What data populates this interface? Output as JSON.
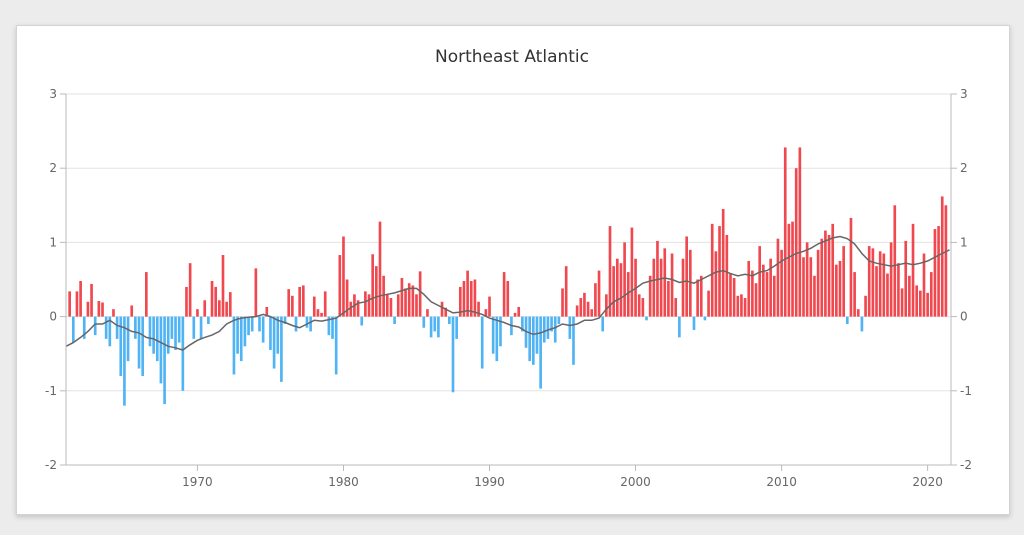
{
  "chart_data": {
    "type": "bar",
    "title": "Northeast Atlantic",
    "xlabel": "",
    "ylabel": "",
    "x_range": [
      1961.0,
      2021.6
    ],
    "ylim": [
      -2,
      3
    ],
    "yticks": [
      3,
      2,
      1,
      0,
      -1,
      -2
    ],
    "xticks": [
      1970,
      1980,
      1990,
      2000,
      2010,
      2020
    ],
    "grid": "horizontal",
    "colors": {
      "positive": "#f0484f",
      "negative": "#4fb3f4",
      "line": "#666666",
      "axis": "#bbbbbb",
      "grid": "#e3e3e3"
    },
    "bar_width_years": 0.25,
    "anomalies": [
      [
        1961.25,
        0.34
      ],
      [
        1961.5,
        -0.35
      ],
      [
        1961.75,
        0.34
      ],
      [
        1962.0,
        0.48
      ],
      [
        1962.25,
        -0.3
      ],
      [
        1962.5,
        0.2
      ],
      [
        1962.75,
        0.44
      ],
      [
        1963.0,
        -0.25
      ],
      [
        1963.25,
        0.21
      ],
      [
        1963.5,
        0.19
      ],
      [
        1963.75,
        -0.3
      ],
      [
        1964.0,
        -0.4
      ],
      [
        1964.25,
        0.1
      ],
      [
        1964.5,
        -0.3
      ],
      [
        1964.75,
        -0.8
      ],
      [
        1965.0,
        -1.2
      ],
      [
        1965.25,
        -0.6
      ],
      [
        1965.5,
        0.15
      ],
      [
        1965.75,
        -0.3
      ],
      [
        1966.0,
        -0.7
      ],
      [
        1966.25,
        -0.8
      ],
      [
        1966.5,
        0.6
      ],
      [
        1966.75,
        -0.4
      ],
      [
        1967.0,
        -0.5
      ],
      [
        1967.25,
        -0.6
      ],
      [
        1967.5,
        -0.9
      ],
      [
        1967.75,
        -1.18
      ],
      [
        1968.0,
        -0.5
      ],
      [
        1968.25,
        -0.3
      ],
      [
        1968.5,
        -0.45
      ],
      [
        1968.75,
        -0.35
      ],
      [
        1969.0,
        -1.0
      ],
      [
        1969.25,
        0.4
      ],
      [
        1969.5,
        0.72
      ],
      [
        1969.75,
        -0.3
      ],
      [
        1970.0,
        0.1
      ],
      [
        1970.25,
        -0.3
      ],
      [
        1970.5,
        0.22
      ],
      [
        1970.75,
        -0.1
      ],
      [
        1971.0,
        0.48
      ],
      [
        1971.25,
        0.4
      ],
      [
        1971.5,
        0.22
      ],
      [
        1971.75,
        0.83
      ],
      [
        1972.0,
        0.2
      ],
      [
        1972.25,
        0.33
      ],
      [
        1972.5,
        -0.78
      ],
      [
        1972.75,
        -0.5
      ],
      [
        1973.0,
        -0.6
      ],
      [
        1973.25,
        -0.4
      ],
      [
        1973.5,
        -0.25
      ],
      [
        1973.75,
        -0.2
      ],
      [
        1974.0,
        0.65
      ],
      [
        1974.25,
        -0.2
      ],
      [
        1974.5,
        -0.35
      ],
      [
        1974.75,
        0.13
      ],
      [
        1975.0,
        -0.45
      ],
      [
        1975.25,
        -0.7
      ],
      [
        1975.5,
        -0.5
      ],
      [
        1975.75,
        -0.88
      ],
      [
        1976.0,
        -0.1
      ],
      [
        1976.25,
        0.37
      ],
      [
        1976.5,
        0.28
      ],
      [
        1976.75,
        -0.2
      ],
      [
        1977.0,
        0.4
      ],
      [
        1977.25,
        0.42
      ],
      [
        1977.5,
        -0.15
      ],
      [
        1977.75,
        -0.2
      ],
      [
        1978.0,
        0.27
      ],
      [
        1978.25,
        0.1
      ],
      [
        1978.5,
        0.05
      ],
      [
        1978.75,
        0.34
      ],
      [
        1979.0,
        -0.25
      ],
      [
        1979.25,
        -0.3
      ],
      [
        1979.5,
        -0.78
      ],
      [
        1979.75,
        0.83
      ],
      [
        1980.0,
        1.08
      ],
      [
        1980.25,
        0.5
      ],
      [
        1980.5,
        0.2
      ],
      [
        1980.75,
        0.3
      ],
      [
        1981.0,
        0.22
      ],
      [
        1981.25,
        -0.12
      ],
      [
        1981.5,
        0.34
      ],
      [
        1981.75,
        0.3
      ],
      [
        1982.0,
        0.84
      ],
      [
        1982.25,
        0.68
      ],
      [
        1982.5,
        1.28
      ],
      [
        1982.75,
        0.55
      ],
      [
        1983.0,
        0.3
      ],
      [
        1983.25,
        0.25
      ],
      [
        1983.5,
        -0.1
      ],
      [
        1983.75,
        0.3
      ],
      [
        1984.0,
        0.52
      ],
      [
        1984.25,
        0.38
      ],
      [
        1984.5,
        0.45
      ],
      [
        1984.75,
        0.42
      ],
      [
        1985.0,
        0.3
      ],
      [
        1985.25,
        0.61
      ],
      [
        1985.5,
        -0.15
      ],
      [
        1985.75,
        0.1
      ],
      [
        1986.0,
        -0.28
      ],
      [
        1986.25,
        -0.2
      ],
      [
        1986.5,
        -0.28
      ],
      [
        1986.75,
        0.2
      ],
      [
        1987.0,
        0.12
      ],
      [
        1987.25,
        -0.1
      ],
      [
        1987.5,
        -1.02
      ],
      [
        1987.75,
        -0.3
      ],
      [
        1988.0,
        0.4
      ],
      [
        1988.25,
        0.48
      ],
      [
        1988.5,
        0.62
      ],
      [
        1988.75,
        0.48
      ],
      [
        1989.0,
        0.5
      ],
      [
        1989.25,
        0.2
      ],
      [
        1989.5,
        -0.7
      ],
      [
        1989.75,
        0.1
      ],
      [
        1990.0,
        0.27
      ],
      [
        1990.25,
        -0.5
      ],
      [
        1990.5,
        -0.6
      ],
      [
        1990.75,
        -0.4
      ],
      [
        1991.0,
        0.6
      ],
      [
        1991.25,
        0.48
      ],
      [
        1991.5,
        -0.25
      ],
      [
        1991.75,
        0.05
      ],
      [
        1992.0,
        0.13
      ],
      [
        1992.25,
        -0.2
      ],
      [
        1992.5,
        -0.42
      ],
      [
        1992.75,
        -0.6
      ],
      [
        1993.0,
        -0.65
      ],
      [
        1993.25,
        -0.5
      ],
      [
        1993.5,
        -0.97
      ],
      [
        1993.75,
        -0.35
      ],
      [
        1994.0,
        -0.3
      ],
      [
        1994.25,
        -0.2
      ],
      [
        1994.5,
        -0.35
      ],
      [
        1994.75,
        -0.1
      ],
      [
        1995.0,
        0.38
      ],
      [
        1995.25,
        0.68
      ],
      [
        1995.5,
        -0.3
      ],
      [
        1995.75,
        -0.65
      ],
      [
        1996.0,
        0.15
      ],
      [
        1996.25,
        0.25
      ],
      [
        1996.5,
        0.32
      ],
      [
        1996.75,
        0.2
      ],
      [
        1997.0,
        0.1
      ],
      [
        1997.25,
        0.45
      ],
      [
        1997.5,
        0.62
      ],
      [
        1997.75,
        -0.2
      ],
      [
        1998.0,
        0.3
      ],
      [
        1998.25,
        1.22
      ],
      [
        1998.5,
        0.68
      ],
      [
        1998.75,
        0.78
      ],
      [
        1999.0,
        0.72
      ],
      [
        1999.25,
        1.0
      ],
      [
        1999.5,
        0.6
      ],
      [
        1999.75,
        1.2
      ],
      [
        2000.0,
        0.78
      ],
      [
        2000.25,
        0.3
      ],
      [
        2000.5,
        0.25
      ],
      [
        2000.75,
        -0.05
      ],
      [
        2001.0,
        0.55
      ],
      [
        2001.25,
        0.78
      ],
      [
        2001.5,
        1.02
      ],
      [
        2001.75,
        0.78
      ],
      [
        2002.0,
        0.92
      ],
      [
        2002.25,
        0.48
      ],
      [
        2002.5,
        0.85
      ],
      [
        2002.75,
        0.25
      ],
      [
        2003.0,
        -0.28
      ],
      [
        2003.25,
        0.78
      ],
      [
        2003.5,
        1.08
      ],
      [
        2003.75,
        0.9
      ],
      [
        2004.0,
        -0.18
      ],
      [
        2004.25,
        0.5
      ],
      [
        2004.5,
        0.55
      ],
      [
        2004.75,
        -0.05
      ],
      [
        2005.0,
        0.35
      ],
      [
        2005.25,
        1.25
      ],
      [
        2005.5,
        0.88
      ],
      [
        2005.75,
        1.22
      ],
      [
        2006.0,
        1.45
      ],
      [
        2006.25,
        1.1
      ],
      [
        2006.5,
        0.58
      ],
      [
        2006.75,
        0.52
      ],
      [
        2007.0,
        0.28
      ],
      [
        2007.25,
        0.3
      ],
      [
        2007.5,
        0.25
      ],
      [
        2007.75,
        0.75
      ],
      [
        2008.0,
        0.62
      ],
      [
        2008.25,
        0.45
      ],
      [
        2008.5,
        0.95
      ],
      [
        2008.75,
        0.7
      ],
      [
        2009.0,
        0.6
      ],
      [
        2009.25,
        0.78
      ],
      [
        2009.5,
        0.55
      ],
      [
        2009.75,
        1.05
      ],
      [
        2010.0,
        0.9
      ],
      [
        2010.25,
        2.28
      ],
      [
        2010.5,
        1.25
      ],
      [
        2010.75,
        1.28
      ],
      [
        2011.0,
        2.0
      ],
      [
        2011.25,
        2.28
      ],
      [
        2011.5,
        0.8
      ],
      [
        2011.75,
        1.0
      ],
      [
        2012.0,
        0.8
      ],
      [
        2012.25,
        0.55
      ],
      [
        2012.5,
        0.9
      ],
      [
        2012.75,
        1.05
      ],
      [
        2013.0,
        1.16
      ],
      [
        2013.25,
        1.1
      ],
      [
        2013.5,
        1.25
      ],
      [
        2013.75,
        0.7
      ],
      [
        2014.0,
        0.75
      ],
      [
        2014.25,
        0.95
      ],
      [
        2014.5,
        -0.1
      ],
      [
        2014.75,
        1.33
      ],
      [
        2015.0,
        0.6
      ],
      [
        2015.25,
        0.1
      ],
      [
        2015.5,
        -0.2
      ],
      [
        2015.75,
        0.28
      ],
      [
        2016.0,
        0.95
      ],
      [
        2016.25,
        0.92
      ],
      [
        2016.5,
        0.68
      ],
      [
        2016.75,
        0.88
      ],
      [
        2017.0,
        0.85
      ],
      [
        2017.25,
        0.58
      ],
      [
        2017.5,
        1.0
      ],
      [
        2017.75,
        1.5
      ],
      [
        2018.0,
        0.72
      ],
      [
        2018.25,
        0.38
      ],
      [
        2018.5,
        1.02
      ],
      [
        2018.75,
        0.55
      ],
      [
        2019.0,
        1.25
      ],
      [
        2019.25,
        0.42
      ],
      [
        2019.5,
        0.35
      ],
      [
        2019.75,
        0.85
      ],
      [
        2020.0,
        0.32
      ],
      [
        2020.25,
        0.6
      ],
      [
        2020.5,
        1.18
      ],
      [
        2020.75,
        1.22
      ],
      [
        2021.0,
        1.62
      ],
      [
        2021.25,
        1.5
      ]
    ],
    "trend_line": [
      [
        1961.0,
        -0.4
      ],
      [
        1961.5,
        -0.35
      ],
      [
        1962.0,
        -0.28
      ],
      [
        1962.5,
        -0.2
      ],
      [
        1963.0,
        -0.1
      ],
      [
        1963.5,
        -0.1
      ],
      [
        1964.0,
        -0.05
      ],
      [
        1964.5,
        -0.12
      ],
      [
        1965.0,
        -0.15
      ],
      [
        1965.5,
        -0.2
      ],
      [
        1966.0,
        -0.22
      ],
      [
        1966.5,
        -0.28
      ],
      [
        1967.0,
        -0.3
      ],
      [
        1967.5,
        -0.35
      ],
      [
        1968.0,
        -0.4
      ],
      [
        1968.5,
        -0.42
      ],
      [
        1969.0,
        -0.45
      ],
      [
        1969.5,
        -0.38
      ],
      [
        1970.0,
        -0.32
      ],
      [
        1970.5,
        -0.28
      ],
      [
        1971.0,
        -0.25
      ],
      [
        1971.5,
        -0.2
      ],
      [
        1972.0,
        -0.1
      ],
      [
        1972.5,
        -0.05
      ],
      [
        1973.0,
        -0.02
      ],
      [
        1973.5,
        -0.01
      ],
      [
        1974.0,
        0.0
      ],
      [
        1974.5,
        0.03
      ],
      [
        1975.0,
        0.0
      ],
      [
        1975.5,
        -0.05
      ],
      [
        1976.0,
        -0.08
      ],
      [
        1976.5,
        -0.12
      ],
      [
        1977.0,
        -0.15
      ],
      [
        1977.5,
        -0.1
      ],
      [
        1978.0,
        -0.05
      ],
      [
        1978.5,
        -0.06
      ],
      [
        1979.0,
        -0.04
      ],
      [
        1979.5,
        -0.02
      ],
      [
        1980.0,
        0.05
      ],
      [
        1980.5,
        0.12
      ],
      [
        1981.0,
        0.18
      ],
      [
        1981.5,
        0.2
      ],
      [
        1982.0,
        0.25
      ],
      [
        1982.5,
        0.28
      ],
      [
        1983.0,
        0.3
      ],
      [
        1983.5,
        0.32
      ],
      [
        1984.0,
        0.35
      ],
      [
        1984.5,
        0.38
      ],
      [
        1985.0,
        0.38
      ],
      [
        1985.5,
        0.3
      ],
      [
        1986.0,
        0.2
      ],
      [
        1986.5,
        0.15
      ],
      [
        1987.0,
        0.1
      ],
      [
        1987.5,
        0.05
      ],
      [
        1988.0,
        0.06
      ],
      [
        1988.5,
        0.08
      ],
      [
        1989.0,
        0.06
      ],
      [
        1989.5,
        0.03
      ],
      [
        1990.0,
        -0.02
      ],
      [
        1990.5,
        -0.05
      ],
      [
        1991.0,
        -0.08
      ],
      [
        1991.5,
        -0.12
      ],
      [
        1992.0,
        -0.14
      ],
      [
        1992.5,
        -0.2
      ],
      [
        1993.0,
        -0.24
      ],
      [
        1993.5,
        -0.22
      ],
      [
        1994.0,
        -0.18
      ],
      [
        1994.5,
        -0.15
      ],
      [
        1995.0,
        -0.1
      ],
      [
        1995.5,
        -0.12
      ],
      [
        1996.0,
        -0.1
      ],
      [
        1996.5,
        -0.05
      ],
      [
        1997.0,
        -0.05
      ],
      [
        1997.5,
        -0.02
      ],
      [
        1998.0,
        0.1
      ],
      [
        1998.5,
        0.2
      ],
      [
        1999.0,
        0.25
      ],
      [
        1999.5,
        0.32
      ],
      [
        2000.0,
        0.38
      ],
      [
        2000.5,
        0.45
      ],
      [
        2001.0,
        0.48
      ],
      [
        2001.5,
        0.5
      ],
      [
        2002.0,
        0.52
      ],
      [
        2002.5,
        0.5
      ],
      [
        2003.0,
        0.46
      ],
      [
        2003.5,
        0.48
      ],
      [
        2004.0,
        0.45
      ],
      [
        2004.5,
        0.5
      ],
      [
        2005.0,
        0.55
      ],
      [
        2005.5,
        0.6
      ],
      [
        2006.0,
        0.62
      ],
      [
        2006.5,
        0.58
      ],
      [
        2007.0,
        0.55
      ],
      [
        2007.5,
        0.57
      ],
      [
        2008.0,
        0.55
      ],
      [
        2008.5,
        0.6
      ],
      [
        2009.0,
        0.62
      ],
      [
        2009.5,
        0.68
      ],
      [
        2010.0,
        0.75
      ],
      [
        2010.5,
        0.8
      ],
      [
        2011.0,
        0.85
      ],
      [
        2011.5,
        0.88
      ],
      [
        2012.0,
        0.92
      ],
      [
        2012.5,
        0.98
      ],
      [
        2013.0,
        1.02
      ],
      [
        2013.5,
        1.06
      ],
      [
        2014.0,
        1.08
      ],
      [
        2014.5,
        1.05
      ],
      [
        2015.0,
        0.98
      ],
      [
        2015.5,
        0.85
      ],
      [
        2016.0,
        0.75
      ],
      [
        2016.5,
        0.72
      ],
      [
        2017.0,
        0.7
      ],
      [
        2017.5,
        0.68
      ],
      [
        2018.0,
        0.7
      ],
      [
        2018.5,
        0.72
      ],
      [
        2019.0,
        0.7
      ],
      [
        2019.5,
        0.72
      ],
      [
        2020.0,
        0.75
      ],
      [
        2020.5,
        0.8
      ],
      [
        2021.0,
        0.85
      ],
      [
        2021.5,
        0.9
      ]
    ]
  }
}
